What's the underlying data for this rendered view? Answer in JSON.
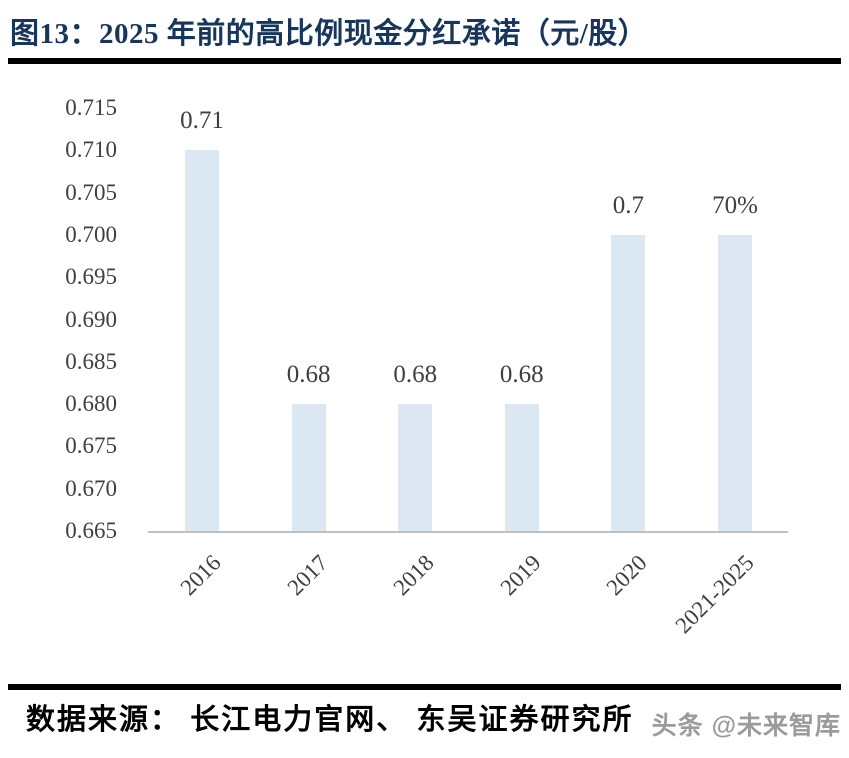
{
  "header": {
    "title": "图13：2025 年前的高比例现金分红承诺（元/股）"
  },
  "chart_data": {
    "type": "bar",
    "title": "2025 年前的高比例现金分红承诺（元/股）",
    "categories": [
      "2016",
      "2017",
      "2018",
      "2019",
      "2020",
      "2021-2025"
    ],
    "values": [
      0.71,
      0.68,
      0.68,
      0.68,
      0.7,
      0.7
    ],
    "data_labels": [
      "0.71",
      "0.68",
      "0.68",
      "0.68",
      "0.7",
      "70%"
    ],
    "xlabel": "",
    "ylabel": "",
    "ylim": [
      0.665,
      0.715
    ],
    "ytick_interval": 0.005,
    "ytick_labels": [
      "0.715",
      "0.710",
      "0.705",
      "0.700",
      "0.695",
      "0.690",
      "0.685",
      "0.680",
      "0.675",
      "0.670",
      "0.665"
    ],
    "grid": false,
    "legend_position": "none",
    "bar_color": "#dbe8f4",
    "axis_line_color": "#bfbfbf",
    "label_color": "#3f3f3f"
  },
  "footer": {
    "source_text": "数据来源： 长江电力官网、 东吴证券研究所",
    "watermark": "头条 @未来智库"
  },
  "colors": {
    "title": "#17365d",
    "rule": "#000000",
    "background": "#ffffff",
    "watermark": "#9b9b9b"
  }
}
